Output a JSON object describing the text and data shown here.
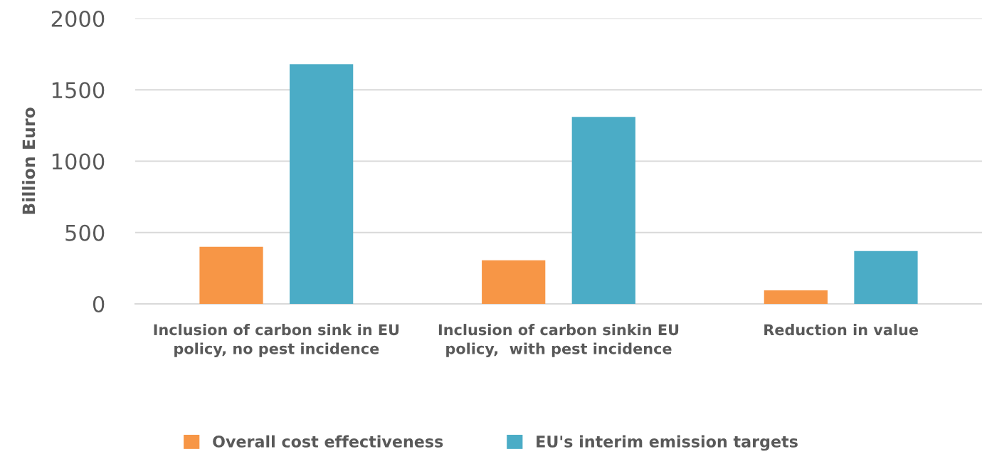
{
  "chart_data": {
    "type": "bar",
    "ylabel": "Billion Euro",
    "categories": [
      "Inclusion of carbon sink in EU policy, no pest incidence",
      "Inclusion of carbon sinkin EU policy,  with pest incidence",
      "Reduction in value"
    ],
    "series": [
      {
        "name": "Overall cost effectiveness",
        "color": "#f79646",
        "values": [
          400,
          305,
          95
        ]
      },
      {
        "name": "EU's interim emission targets",
        "color": "#4bacc6",
        "values": [
          1680,
          1310,
          370
        ]
      }
    ],
    "ylim": [
      0,
      2000
    ],
    "yticks": [
      0,
      500,
      1000,
      1500,
      2000
    ],
    "grid": "y",
    "legend": "bottom"
  }
}
